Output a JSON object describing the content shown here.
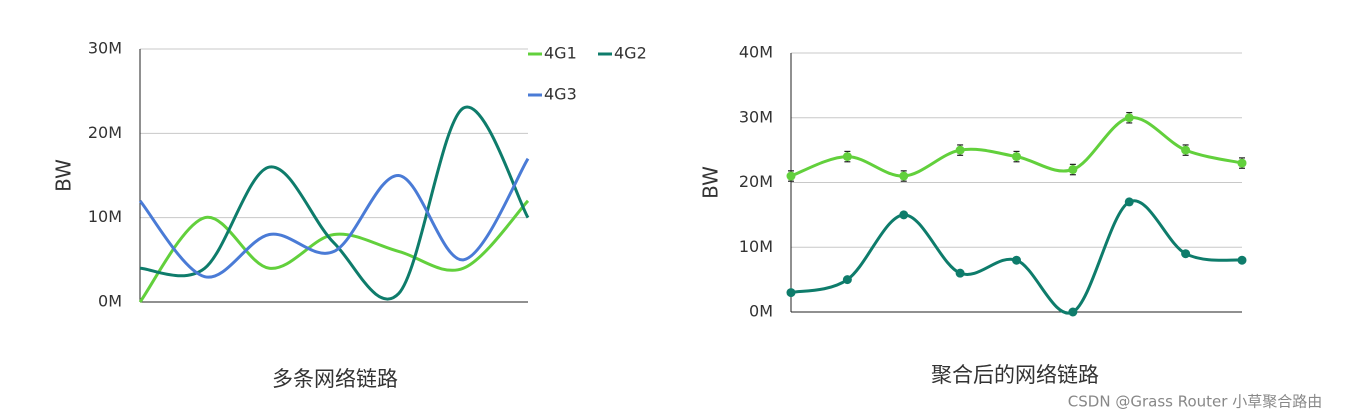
{
  "chart_data": [
    {
      "type": "line",
      "title": "多条网络链路",
      "y_label": "BW",
      "smooth": true,
      "grid": true,
      "legend": "top-right",
      "categories": [
        null,
        null,
        null,
        null,
        null,
        null,
        null
      ],
      "ylim": [
        0,
        30
      ],
      "yticks": [
        {
          "value": 0,
          "label": "0M"
        },
        {
          "value": 10,
          "label": "10M"
        },
        {
          "value": 20,
          "label": "20M"
        },
        {
          "value": 30,
          "label": "30M"
        }
      ],
      "series": [
        {
          "name": "4G1",
          "color": "#62d03c",
          "values": [
            0,
            10,
            4,
            8,
            6,
            4,
            12
          ]
        },
        {
          "name": "4G2",
          "color": "#0e7c6b",
          "values": [
            4,
            4,
            16,
            7,
            1,
            23,
            10
          ]
        },
        {
          "name": "4G3",
          "color": "#4a7bd6",
          "values": [
            12,
            3,
            8,
            6,
            15,
            5,
            17
          ]
        }
      ]
    },
    {
      "type": "line",
      "title": "聚合后的网络链路",
      "y_label": "BW",
      "smooth": true,
      "grid": true,
      "markers": true,
      "categories": [
        null,
        null,
        null,
        null,
        null,
        null,
        null,
        null,
        null
      ],
      "ylim": [
        0,
        40
      ],
      "yticks": [
        {
          "value": 0,
          "label": "0M"
        },
        {
          "value": 10,
          "label": "10M"
        },
        {
          "value": 20,
          "label": "20M"
        },
        {
          "value": 30,
          "label": "30M"
        },
        {
          "value": 40,
          "label": "40M"
        }
      ],
      "series": [
        {
          "color": "#62d03c",
          "values": [
            21,
            24,
            21,
            25,
            24,
            22,
            30,
            25,
            23
          ],
          "errors": [
            0.8,
            0.8,
            0.8,
            0.8,
            0.8,
            0.8,
            0.8,
            0.8,
            0.8
          ]
        },
        {
          "color": "#0e7c6b",
          "values": [
            3,
            5,
            15,
            6,
            8,
            0,
            17,
            9,
            8
          ]
        }
      ]
    }
  ],
  "watermark": "CSDN @Grass Router 小草聚合路由"
}
